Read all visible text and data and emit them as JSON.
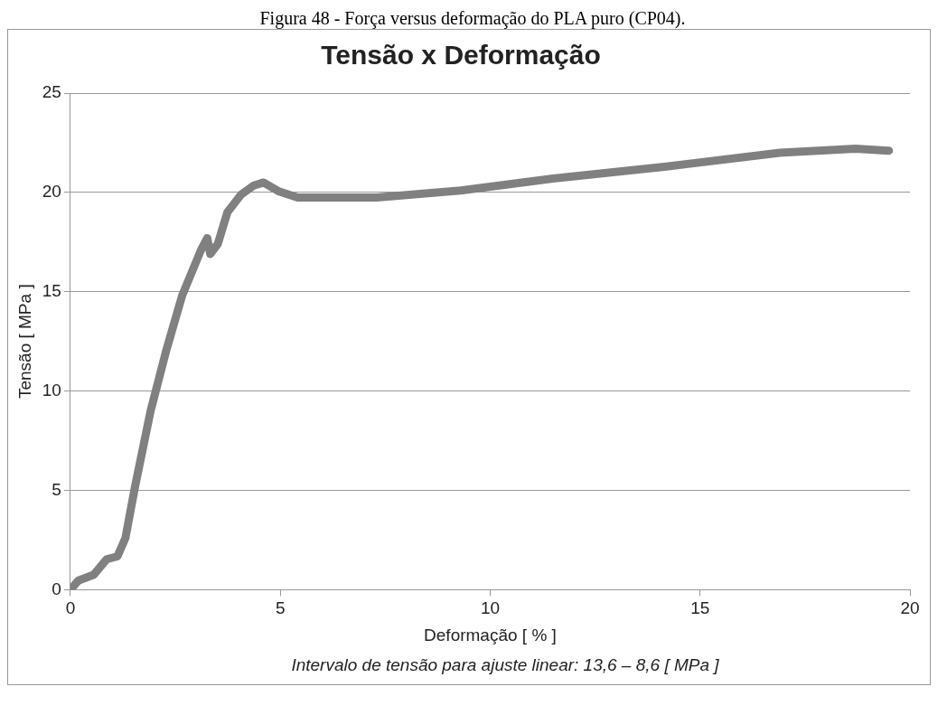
{
  "chart_data": {
    "type": "line",
    "title": "Tensão x Deformação",
    "xlabel": "Deformação [ % ]",
    "ylabel": "Tensão [ MPa ]",
    "annotations": [
      "Figura 48 - Força versus deformação do PLA puro (CP04).",
      "Intervalo de tensão para ajuste linear: 13,6 – 8,6 [ MPa ]"
    ],
    "x": [
      0,
      0.19,
      0.56,
      0.86,
      1.12,
      1.31,
      1.54,
      1.91,
      2.29,
      2.66,
      3.11,
      3.26,
      3.33,
      3.51,
      3.74,
      4.07,
      4.37,
      4.6,
      4.97,
      5.41,
      7.3,
      9.3,
      11.5,
      14.2,
      16.9,
      18.7,
      19.5
    ],
    "series": [
      {
        "color": "#808080",
        "values": [
          0,
          0.46,
          0.76,
          1.53,
          1.68,
          2.6,
          5.2,
          9.0,
          12.1,
          14.8,
          17.1,
          17.7,
          16.9,
          17.4,
          19.0,
          19.9,
          20.35,
          20.5,
          20.05,
          19.74,
          19.74,
          20.1,
          20.7,
          21.3,
          22.0,
          22.2,
          22.1
        ]
      }
    ],
    "xlim": [
      0,
      20
    ],
    "xticks": [
      0,
      5,
      10,
      15,
      20
    ],
    "ylim": [
      0,
      25
    ],
    "yticks": [
      0,
      5,
      10,
      15,
      20,
      25
    ],
    "grid": "y",
    "legend": false,
    "marker": "none",
    "line_style": "solid"
  }
}
